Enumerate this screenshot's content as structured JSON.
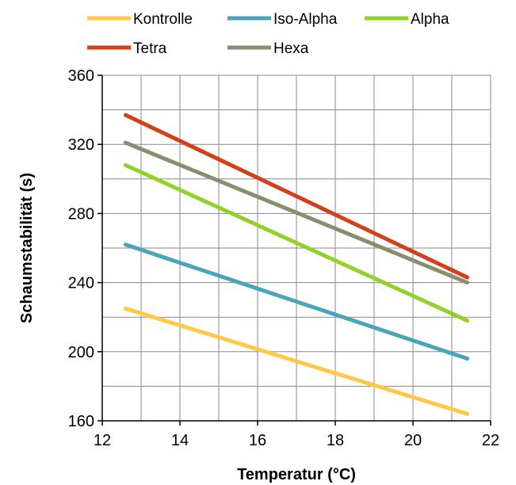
{
  "chart_data": {
    "type": "line",
    "xlabel": "Temperatur (°C)",
    "ylabel": "Schaumstabilität (s)",
    "xlim": [
      12,
      22
    ],
    "ylim": [
      160,
      360
    ],
    "xticks": [
      12,
      14,
      16,
      18,
      20,
      22
    ],
    "yticks": [
      160,
      200,
      240,
      280,
      320,
      360
    ],
    "grid": true,
    "legend_position": "top",
    "series": [
      {
        "name": "Kontrolle",
        "color": "#FFC845",
        "x": [
          12.6,
          21.4
        ],
        "y": [
          225,
          164
        ]
      },
      {
        "name": "Iso-Alpha",
        "color": "#4BA3BE",
        "x": [
          12.6,
          21.4
        ],
        "y": [
          262,
          196
        ]
      },
      {
        "name": "Alpha",
        "color": "#92D12A",
        "x": [
          12.6,
          21.4
        ],
        "y": [
          308,
          218
        ]
      },
      {
        "name": "Tetra",
        "color": "#D2401B",
        "x": [
          12.6,
          21.4
        ],
        "y": [
          337,
          243
        ]
      },
      {
        "name": "Hexa",
        "color": "#8C8C70",
        "x": [
          12.6,
          21.4
        ],
        "y": [
          321,
          240
        ]
      }
    ]
  }
}
